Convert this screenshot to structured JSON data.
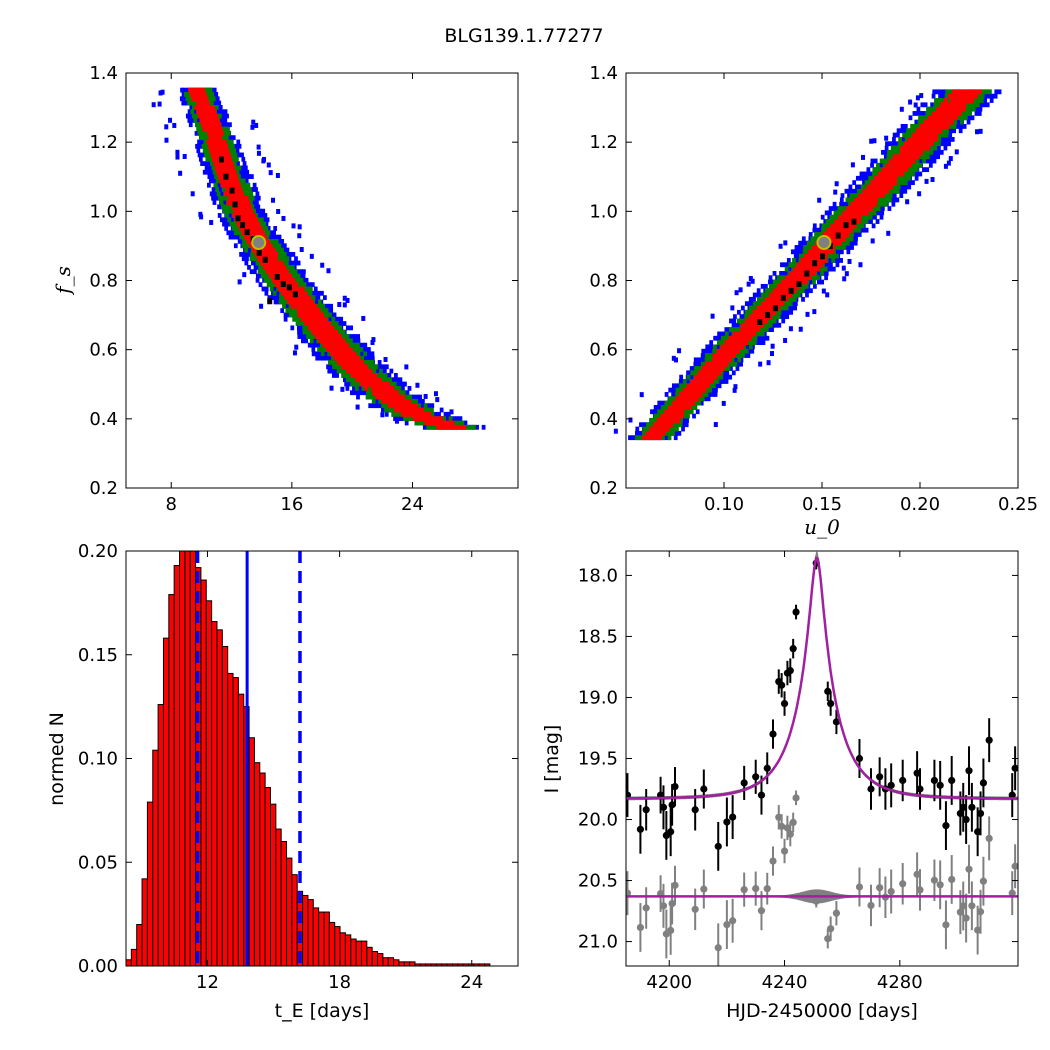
{
  "figure": {
    "title": "BLG139.1.77277"
  },
  "colors": {
    "sigma3": "#0000ff",
    "sigma2": "#008000",
    "sigma1": "#ff0000",
    "best": "#000000",
    "marker_edge": "#bfbf00",
    "marker_face": "#808080",
    "bar_fill": "#ff0000",
    "vline": "#0000ff",
    "model": "#a020a0",
    "model_band": "#808080",
    "data": "#000000",
    "residual": "#808080"
  },
  "chart_data": [
    {
      "id": "tE-fs",
      "type": "heatmap",
      "xlabel": "",
      "ylabel": "f_s",
      "xlim": [
        5,
        31
      ],
      "ylim": [
        0.2,
        1.4
      ],
      "xticks": [
        "8",
        "16",
        "24"
      ],
      "yticks": [
        "0.2",
        "0.4",
        "0.6",
        "0.8",
        "1.0",
        "1.2",
        "1.4"
      ],
      "band_center": [
        [
          9.6,
          1.35
        ],
        [
          10.5,
          1.25
        ],
        [
          11.5,
          1.12
        ],
        [
          12.5,
          1.0
        ],
        [
          13.5,
          0.92
        ],
        [
          15,
          0.82
        ],
        [
          16.5,
          0.73
        ],
        [
          18,
          0.65
        ],
        [
          20,
          0.55
        ],
        [
          22,
          0.47
        ],
        [
          24,
          0.41
        ],
        [
          26.5,
          0.37
        ]
      ],
      "best_points": [
        [
          11.3,
          1.15
        ],
        [
          11.6,
          1.1
        ],
        [
          12.0,
          1.06
        ],
        [
          12.2,
          1.02
        ],
        [
          12.4,
          0.98
        ],
        [
          12.7,
          0.96
        ],
        [
          13.0,
          0.94
        ],
        [
          13.4,
          0.92
        ],
        [
          13.8,
          0.88
        ],
        [
          14.2,
          0.86
        ],
        [
          15.0,
          0.81
        ],
        [
          15.4,
          0.79
        ],
        [
          15.8,
          0.78
        ],
        [
          16.2,
          0.76
        ],
        [
          14.5,
          0.74
        ]
      ],
      "marker": [
        13.8,
        0.91
      ]
    },
    {
      "id": "u0-fs",
      "type": "heatmap",
      "xlabel": "u_0",
      "ylabel": "",
      "xlim": [
        0.05,
        0.25
      ],
      "ylim": [
        0.2,
        1.4
      ],
      "xticks": [
        "0.10",
        "0.15",
        "0.20",
        "0.25"
      ],
      "yticks": [
        "0.2",
        "0.4",
        "0.6",
        "0.8",
        "1.0",
        "1.2",
        "1.4"
      ],
      "band_center": [
        [
          0.063,
          0.34
        ],
        [
          0.08,
          0.45
        ],
        [
          0.1,
          0.58
        ],
        [
          0.12,
          0.7
        ],
        [
          0.14,
          0.82
        ],
        [
          0.16,
          0.95
        ],
        [
          0.18,
          1.07
        ],
        [
          0.2,
          1.2
        ],
        [
          0.225,
          1.35
        ]
      ],
      "best_points": [
        [
          0.118,
          0.68
        ],
        [
          0.122,
          0.7
        ],
        [
          0.126,
          0.72
        ],
        [
          0.13,
          0.75
        ],
        [
          0.134,
          0.77
        ],
        [
          0.138,
          0.79
        ],
        [
          0.142,
          0.82
        ],
        [
          0.146,
          0.85
        ],
        [
          0.15,
          0.87
        ],
        [
          0.154,
          0.9
        ],
        [
          0.158,
          0.93
        ],
        [
          0.162,
          0.96
        ],
        [
          0.166,
          0.97
        ]
      ],
      "marker": [
        0.151,
        0.91
      ]
    },
    {
      "id": "tE-hist",
      "type": "bar",
      "xlabel": "t_E [days]",
      "ylabel": "normed N",
      "xlim": [
        8.3,
        26.1
      ],
      "ylim": [
        0,
        0.2
      ],
      "xticks": [
        "12",
        "18",
        "24"
      ],
      "yticks": [
        "0.00",
        "0.05",
        "0.10",
        "0.15",
        "0.20"
      ],
      "bin_start": 8.3,
      "bin_width": 0.243,
      "values": [
        0.003,
        0.008,
        0.02,
        0.042,
        0.079,
        0.104,
        0.126,
        0.158,
        0.179,
        0.193,
        0.2,
        0.2,
        0.2,
        0.192,
        0.186,
        0.176,
        0.166,
        0.162,
        0.154,
        0.141,
        0.139,
        0.131,
        0.125,
        0.11,
        0.098,
        0.093,
        0.086,
        0.078,
        0.066,
        0.06,
        0.052,
        0.044,
        0.036,
        0.034,
        0.032,
        0.028,
        0.026,
        0.026,
        0.021,
        0.019,
        0.016,
        0.015,
        0.013,
        0.012,
        0.012,
        0.009,
        0.007,
        0.006,
        0.004,
        0.004,
        0.003,
        0.002,
        0.002,
        0.002,
        0.001,
        0.001,
        0.001,
        0.001,
        0.001,
        0.001,
        0.001,
        0.001,
        0.001,
        0.001,
        0.001,
        0.001,
        0.001,
        0.001
      ],
      "vlines_solid": [
        13.8
      ],
      "vlines_dashed": [
        11.55,
        16.2
      ]
    },
    {
      "id": "light-curve",
      "type": "scatter",
      "xlabel": "HJD-2450000 [days]",
      "ylabel": "I [mag]",
      "xlim": [
        4185,
        4321
      ],
      "ylim": [
        21.2,
        17.8
      ],
      "xticks": [
        "4200",
        "4240",
        "4280"
      ],
      "yticks": [
        "18.0",
        "18.5",
        "19.0",
        "19.5",
        "20.0",
        "20.5",
        "21.0"
      ],
      "model": {
        "t0": 4251.2,
        "tE": 13.8,
        "u0": 0.151,
        "baseline": 19.83,
        "fs": 0.91
      },
      "residual_baseline": 20.63,
      "points": [
        [
          4185.5,
          19.8,
          0.18
        ],
        [
          4190,
          20.08,
          0.2
        ],
        [
          4192,
          19.92,
          0.17
        ],
        [
          4197,
          19.8,
          0.15
        ],
        [
          4198,
          19.9,
          0.18
        ],
        [
          4199,
          20.13,
          0.2
        ],
        [
          4200.5,
          20.1,
          0.2
        ],
        [
          4201,
          19.88,
          0.17
        ],
        [
          4202,
          19.73,
          0.16
        ],
        [
          4209,
          19.92,
          0.17
        ],
        [
          4212,
          19.75,
          0.16
        ],
        [
          4217,
          20.22,
          0.2
        ],
        [
          4220,
          20.02,
          0.2
        ],
        [
          4222,
          19.98,
          0.18
        ],
        [
          4226,
          19.7,
          0.14
        ],
        [
          4230,
          19.65,
          0.14
        ],
        [
          4232,
          19.8,
          0.16
        ],
        [
          4234,
          19.58,
          0.13
        ],
        [
          4236,
          19.3,
          0.12
        ],
        [
          4238,
          18.87,
          0.1
        ],
        [
          4239,
          18.9,
          0.1
        ],
        [
          4240,
          19.05,
          0.1
        ],
        [
          4241,
          18.8,
          0.1
        ],
        [
          4242,
          18.78,
          0.1
        ],
        [
          4243,
          18.6,
          0.08
        ],
        [
          4244,
          18.3,
          0.06
        ],
        [
          4251,
          17.9,
          0.05
        ],
        [
          4255,
          18.95,
          0.08
        ],
        [
          4256,
          19.05,
          0.1
        ],
        [
          4258,
          19.2,
          0.1
        ],
        [
          4266,
          19.5,
          0.16
        ],
        [
          4270,
          19.75,
          0.17
        ],
        [
          4273,
          19.65,
          0.16
        ],
        [
          4275,
          19.75,
          0.17
        ],
        [
          4277,
          19.72,
          0.18
        ],
        [
          4281,
          19.68,
          0.17
        ],
        [
          4286,
          19.62,
          0.18
        ],
        [
          4287,
          19.75,
          0.17
        ],
        [
          4292,
          19.68,
          0.17
        ],
        [
          4294,
          19.72,
          0.2
        ],
        [
          4296,
          20.05,
          0.2
        ],
        [
          4298,
          19.68,
          0.2
        ],
        [
          4301,
          19.95,
          0.18
        ],
        [
          4302,
          19.9,
          0.2
        ],
        [
          4303,
          20.0,
          0.2
        ],
        [
          4304,
          19.6,
          0.2
        ],
        [
          4305,
          19.9,
          0.2
        ],
        [
          4307,
          20.1,
          0.2
        ],
        [
          4308,
          19.95,
          0.18
        ],
        [
          4309,
          19.7,
          0.2
        ],
        [
          4311,
          19.35,
          0.18
        ],
        [
          4319,
          19.8,
          0.18
        ],
        [
          4320,
          19.58,
          0.18
        ]
      ]
    }
  ]
}
